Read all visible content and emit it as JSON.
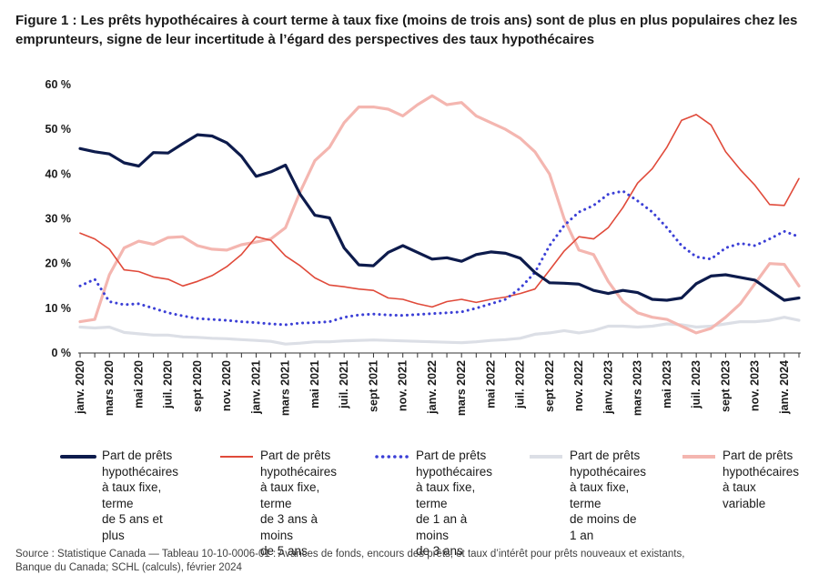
{
  "title": "Figure 1 : Les prêts hypothécaires à court terme à taux fixe (moins de trois ans) sont de plus en plus populaires chez les emprunteurs, signe de leur incertitude à l’égard des perspectives des taux hypothécaires",
  "source": "Source : Statistique Canada — Tableau 10-10-0006-01 : Avances de fonds, encours des prêts, et taux d’intérêt pour prêts nouveaux et existants,\nBanque du Canada; SCHL (calculs), février 2024",
  "chart_data": {
    "type": "line",
    "ylim": [
      0,
      60
    ],
    "yticks": [
      0,
      10,
      20,
      30,
      40,
      50,
      60
    ],
    "ytick_labels": [
      "0 %",
      "10 %",
      "20 %",
      "30 %",
      "40 %",
      "50 %",
      "60 %"
    ],
    "xtick_labels": [
      "janv. 2020",
      "mars 2020",
      "mai 2020",
      "juil. 2020",
      "sept 2020",
      "nov. 2020",
      "janv. 2021",
      "mars 2021",
      "mai 2021",
      "juil. 2021",
      "sept 2021",
      "nov. 2021",
      "janv. 2022",
      "mars 2022",
      "mai 2022",
      "juil. 2022",
      "sept 2022",
      "nov. 2022",
      "janv. 2023",
      "mars 2023",
      "mai 2023",
      "juil. 2023",
      "sept 2023",
      "nov. 2023",
      "janv. 2024"
    ],
    "x": [
      "2020-01",
      "2020-02",
      "2020-03",
      "2020-04",
      "2020-05",
      "2020-06",
      "2020-07",
      "2020-08",
      "2020-09",
      "2020-10",
      "2020-11",
      "2020-12",
      "2021-01",
      "2021-02",
      "2021-03",
      "2021-04",
      "2021-05",
      "2021-06",
      "2021-07",
      "2021-08",
      "2021-09",
      "2021-10",
      "2021-11",
      "2021-12",
      "2022-01",
      "2022-02",
      "2022-03",
      "2022-04",
      "2022-05",
      "2022-06",
      "2022-07",
      "2022-08",
      "2022-09",
      "2022-10",
      "2022-11",
      "2022-12",
      "2023-01",
      "2023-02",
      "2023-03",
      "2023-04",
      "2023-05",
      "2023-06",
      "2023-07",
      "2023-08",
      "2023-09",
      "2023-10",
      "2023-11",
      "2023-12",
      "2024-01",
      "2024-02"
    ],
    "grid": false,
    "legend_position": "bottom",
    "series": [
      {
        "name": "Part de prêts\nhypothécaires\nà taux fixe, terme\nde 5 ans et plus",
        "color": "#0d1b4c",
        "style": "solid",
        "values": [
          45.7,
          45.0,
          44.5,
          42.5,
          41.8,
          44.8,
          44.7,
          46.8,
          48.8,
          48.5,
          47.0,
          44.0,
          39.5,
          40.5,
          42.0,
          35.5,
          30.8,
          30.2,
          23.5,
          19.7,
          19.5,
          22.5,
          24.0,
          22.5,
          21.0,
          21.3,
          20.5,
          22.0,
          22.6,
          22.3,
          21.2,
          18.0,
          15.7,
          15.6,
          15.4,
          14.0,
          13.3,
          14.0,
          13.5,
          12.0,
          11.8,
          12.3,
          15.5,
          17.2,
          17.5,
          16.9,
          16.3,
          14.0,
          11.8,
          12.3
        ]
      },
      {
        "name": "Part de prêts\nhypothécaires\nà taux fixe, terme\nde 3 ans à moins\nde 5 ans",
        "color": "#e04a3a",
        "style": "solid",
        "values": [
          26.8,
          25.5,
          23.2,
          18.6,
          18.2,
          17.0,
          16.5,
          15.0,
          16.0,
          17.3,
          19.3,
          22.0,
          26.0,
          25.2,
          21.7,
          19.5,
          16.8,
          15.2,
          14.8,
          14.3,
          14.0,
          12.3,
          12.0,
          11.0,
          10.3,
          11.5,
          12.0,
          11.3,
          12.0,
          12.5,
          13.3,
          14.3,
          18.5,
          22.8,
          26.0,
          25.5,
          28.0,
          32.5,
          38.0,
          41.2,
          46.0,
          52.0,
          53.3,
          51.0,
          45.0,
          41.0,
          37.5,
          33.2,
          33.0,
          39.0
        ]
      },
      {
        "name": "Part de prêts\nhypothécaires\nà taux fixe, terme\nde 1 an à moins\nde 3 ans",
        "color": "#3b3fd6",
        "style": "dotted",
        "values": [
          15.0,
          16.5,
          11.5,
          10.8,
          11.0,
          10.0,
          9.0,
          8.3,
          7.7,
          7.5,
          7.3,
          7.0,
          6.8,
          6.5,
          6.3,
          6.7,
          6.8,
          7.0,
          8.0,
          8.5,
          8.7,
          8.5,
          8.4,
          8.6,
          8.8,
          9.0,
          9.2,
          10.0,
          11.0,
          12.0,
          14.5,
          18.0,
          24.0,
          28.5,
          31.5,
          33.0,
          35.5,
          36.2,
          34.0,
          31.5,
          28.0,
          24.0,
          21.5,
          21.0,
          23.5,
          24.5,
          24.0,
          25.5,
          27.2,
          26.0
        ]
      },
      {
        "name": "Part de prêts\nhypothécaires\nà taux fixe, terme\nde moins de 1 an",
        "color": "#dcdfe6",
        "style": "solid",
        "values": [
          5.8,
          5.6,
          5.8,
          4.6,
          4.3,
          4.0,
          4.0,
          3.6,
          3.5,
          3.3,
          3.2,
          3.0,
          2.8,
          2.6,
          2.0,
          2.2,
          2.5,
          2.5,
          2.7,
          2.8,
          2.9,
          2.8,
          2.7,
          2.6,
          2.5,
          2.4,
          2.3,
          2.5,
          2.8,
          3.0,
          3.3,
          4.2,
          4.5,
          5.0,
          4.5,
          5.0,
          6.0,
          6.0,
          5.8,
          6.0,
          6.5,
          6.3,
          5.8,
          6.0,
          6.5,
          7.0,
          7.0,
          7.3,
          8.0,
          7.3
        ]
      },
      {
        "name": "Part de prêts\nhypothécaires\nà taux variable",
        "color": "#f4b6b0",
        "style": "solid",
        "values": [
          7.0,
          7.5,
          17.5,
          23.5,
          25.0,
          24.3,
          25.8,
          26.0,
          24.0,
          23.2,
          23.0,
          24.2,
          24.8,
          25.5,
          28.0,
          36.0,
          43.0,
          46.0,
          51.5,
          55.0,
          55.0,
          54.5,
          53.0,
          55.5,
          57.5,
          55.5,
          56.0,
          53.0,
          51.5,
          50.0,
          48.0,
          45.0,
          40.0,
          30.0,
          23.0,
          22.0,
          16.0,
          11.5,
          9.0,
          8.0,
          7.5,
          6.0,
          4.5,
          5.5,
          8.0,
          11.0,
          15.5,
          20.0,
          19.8,
          15.0
        ]
      }
    ]
  }
}
